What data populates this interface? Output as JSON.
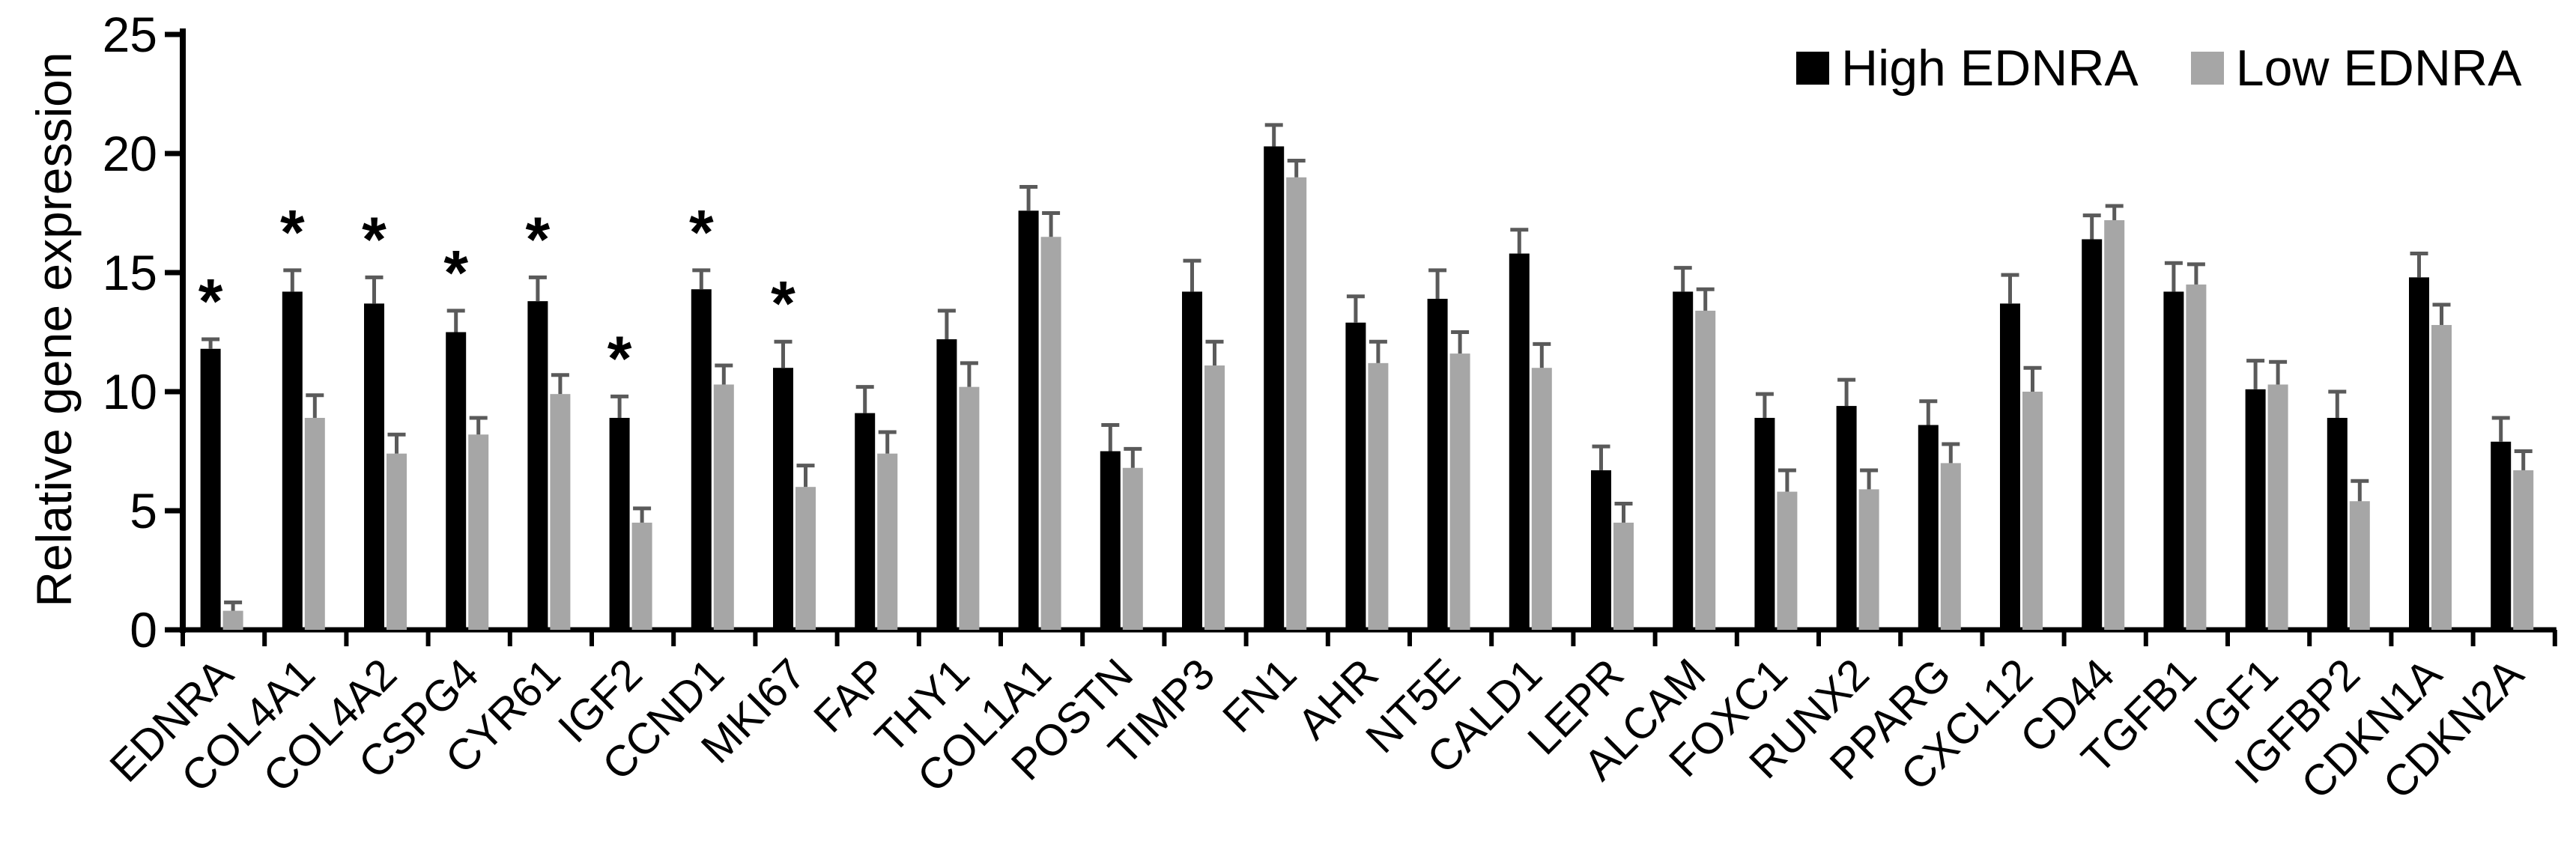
{
  "chart_data": {
    "type": "bar",
    "title": "",
    "xlabel": "",
    "ylabel": "Relative gene expression",
    "ylim": [
      0,
      25
    ],
    "yticks": [
      0,
      5,
      10,
      15,
      20,
      25
    ],
    "grid": false,
    "legend_position": "top-right",
    "significance_marker": "*",
    "categories": [
      "EDNRA",
      "COL4A1",
      "COL4A2",
      "CSPG4",
      "CYR61",
      "IGF2",
      "CCND1",
      "MKI67",
      "FAP",
      "THY1",
      "COL1A1",
      "POSTN",
      "TIMP3",
      "FN1",
      "AHR",
      "NT5E",
      "CALD1",
      "LEPR",
      "ALCAM",
      "FOXC1",
      "RUNX2",
      "PPARG",
      "CXCL12",
      "CD44",
      "TGFB1",
      "IGF1",
      "IGFBP2",
      "CDKN1A",
      "CDKN2A"
    ],
    "series": [
      {
        "name": "High EDNRA",
        "color": "#000000",
        "values": [
          11.8,
          14.2,
          13.7,
          12.5,
          13.8,
          8.9,
          14.3,
          11.0,
          9.1,
          12.2,
          17.6,
          7.5,
          14.2,
          20.3,
          12.9,
          13.9,
          15.8,
          6.7,
          14.2,
          8.9,
          9.4,
          8.6,
          13.7,
          16.4,
          14.2,
          10.1,
          8.9,
          14.8,
          7.9
        ],
        "errors": [
          0.4,
          0.9,
          1.1,
          0.9,
          1.0,
          0.9,
          0.8,
          1.1,
          1.1,
          1.2,
          1.0,
          1.1,
          1.3,
          0.9,
          1.1,
          1.2,
          1.0,
          1.0,
          1.0,
          1.0,
          1.1,
          1.0,
          1.2,
          1.0,
          1.2,
          1.2,
          1.1,
          1.0,
          1.0
        ]
      },
      {
        "name": "Low EDNRA",
        "color": "#a6a6a6",
        "values": [
          0.8,
          8.9,
          7.4,
          8.2,
          9.9,
          4.5,
          10.3,
          6.0,
          7.4,
          10.2,
          16.5,
          6.8,
          11.1,
          19.0,
          11.2,
          11.6,
          11.0,
          4.5,
          13.4,
          5.8,
          5.9,
          7.0,
          10.0,
          17.2,
          14.5,
          10.3,
          5.4,
          12.8,
          6.7
        ],
        "errors": [
          0.35,
          0.95,
          0.8,
          0.7,
          0.8,
          0.6,
          0.8,
          0.9,
          0.9,
          1.0,
          1.0,
          0.8,
          1.0,
          0.7,
          0.9,
          0.9,
          1.0,
          0.8,
          0.9,
          0.9,
          0.8,
          0.8,
          1.0,
          0.6,
          0.85,
          0.95,
          0.85,
          0.85,
          0.8
        ]
      }
    ],
    "significant_categories": [
      "EDNRA",
      "COL4A1",
      "COL4A2",
      "CSPG4",
      "CYR61",
      "IGF2",
      "CCND1",
      "MKI67"
    ]
  },
  "colors": {
    "bar_high": "#000000",
    "bar_low": "#a6a6a6",
    "error_bar": "#5a5a5a",
    "axis": "#000000",
    "text": "#000000",
    "background": "#ffffff"
  }
}
